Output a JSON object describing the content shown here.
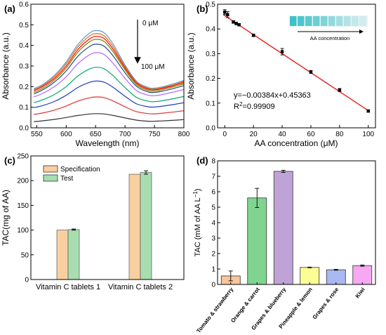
{
  "chart_data": [
    {
      "panel_label": "(a)",
      "type": "line",
      "xlabel": "Wavelength (nm)",
      "ylabel": "Absorbance (a.u.)",
      "xlim": [
        540,
        800
      ],
      "ylim": [
        0.0,
        0.6
      ],
      "xticks": [
        "550",
        "600",
        "650",
        "700",
        "750",
        "800"
      ],
      "yticks": [
        "0.0",
        "0.1",
        "0.2",
        "0.3",
        "0.4",
        "0.5",
        "0.6"
      ],
      "annotation_top": "0 μM",
      "annotation_bottom": "100 μM",
      "x": [
        545,
        560,
        580,
        600,
        620,
        640,
        652,
        665,
        680,
        700,
        720,
        740,
        750,
        760,
        780,
        800
      ],
      "series": [
        {
          "color": "#5b9bd5",
          "values": [
            0.19,
            0.21,
            0.255,
            0.32,
            0.405,
            0.46,
            0.472,
            0.46,
            0.405,
            0.305,
            0.225,
            0.195,
            0.193,
            0.197,
            0.212,
            0.23
          ]
        },
        {
          "color": "#e46c0a",
          "values": [
            0.185,
            0.205,
            0.248,
            0.311,
            0.393,
            0.446,
            0.457,
            0.445,
            0.392,
            0.297,
            0.22,
            0.191,
            0.189,
            0.193,
            0.207,
            0.225
          ]
        },
        {
          "color": "#ff0000",
          "values": [
            0.18,
            0.2,
            0.24,
            0.3,
            0.38,
            0.432,
            0.444,
            0.432,
            0.38,
            0.29,
            0.215,
            0.187,
            0.185,
            0.189,
            0.203,
            0.22
          ]
        },
        {
          "color": "#808000",
          "values": [
            0.172,
            0.192,
            0.232,
            0.29,
            0.368,
            0.418,
            0.43,
            0.418,
            0.368,
            0.281,
            0.208,
            0.181,
            0.179,
            0.183,
            0.197,
            0.213
          ]
        },
        {
          "color": "#1f4e79",
          "values": [
            0.165,
            0.184,
            0.222,
            0.276,
            0.348,
            0.395,
            0.406,
            0.395,
            0.348,
            0.267,
            0.2,
            0.174,
            0.172,
            0.176,
            0.189,
            0.205
          ]
        },
        {
          "color": "#b266ff",
          "values": [
            0.15,
            0.167,
            0.2,
            0.248,
            0.312,
            0.355,
            0.365,
            0.355,
            0.312,
            0.24,
            0.18,
            0.158,
            0.156,
            0.16,
            0.172,
            0.186
          ]
        },
        {
          "color": "#00a86b",
          "values": [
            0.122,
            0.136,
            0.162,
            0.2,
            0.252,
            0.286,
            0.294,
            0.286,
            0.252,
            0.195,
            0.147,
            0.129,
            0.127,
            0.13,
            0.14,
            0.152
          ]
        },
        {
          "color": "#1f3fbf",
          "values": [
            0.098,
            0.108,
            0.128,
            0.158,
            0.196,
            0.221,
            0.227,
            0.221,
            0.196,
            0.153,
            0.116,
            0.102,
            0.101,
            0.104,
            0.112,
            0.122
          ]
        },
        {
          "color": "#e03030",
          "values": [
            0.065,
            0.072,
            0.086,
            0.106,
            0.13,
            0.146,
            0.15,
            0.146,
            0.13,
            0.102,
            0.078,
            0.069,
            0.068,
            0.07,
            0.076,
            0.083
          ]
        },
        {
          "color": "#333333",
          "values": [
            0.03,
            0.034,
            0.041,
            0.05,
            0.06,
            0.067,
            0.069,
            0.067,
            0.06,
            0.048,
            0.037,
            0.032,
            0.032,
            0.033,
            0.036,
            0.04
          ]
        }
      ]
    },
    {
      "panel_label": "(b)",
      "type": "scatter",
      "xlabel": "AA concentration (μM)",
      "ylabel": "Absorbance (a.u.)",
      "xlim": [
        -5,
        105
      ],
      "ylim": [
        0.0,
        0.5
      ],
      "xticks": [
        "0",
        "20",
        "40",
        "60",
        "80",
        "100"
      ],
      "yticks": [
        "0.0",
        "0.1",
        "0.2",
        "0.3",
        "0.4",
        "0.5"
      ],
      "x": [
        0,
        2,
        6,
        8,
        10,
        20,
        40,
        60,
        80,
        100
      ],
      "y": [
        0.468,
        0.458,
        0.428,
        0.422,
        0.417,
        0.374,
        0.308,
        0.226,
        0.153,
        0.068
      ],
      "error": [
        0.01,
        0.012,
        0.005,
        0.005,
        0.005,
        0.005,
        0.013,
        0.006,
        0.006,
        0.005
      ],
      "fit": {
        "slope": -0.00384,
        "intercept": 0.45363,
        "color": "#e8201a"
      },
      "equation": "y=−0.00384x+0.45363",
      "r2_prefix": "R",
      "r2_sup": "2",
      "r2_value": "=0.99909",
      "inset_caption": "AA concentration",
      "inset_strips": [
        "#3fc1c9",
        "#4dc6cd",
        "#5ccad0",
        "#6dcfd4",
        "#7fd4d8",
        "#91d9dc",
        "#a3dee1",
        "#b3e3e5",
        "#c2e8ea",
        "#d0ecee"
      ]
    },
    {
      "panel_label": "(c)",
      "type": "bar",
      "ylabel": "TAC(mg of AA)",
      "ylim": [
        0,
        250
      ],
      "yticks": [
        "0",
        "50",
        "100",
        "150",
        "200",
        "250"
      ],
      "categories": [
        "Vitamin C tablets 1",
        "Vitamin C tablets 2"
      ],
      "series": [
        {
          "name": "Specification",
          "color": "#f9cfa0",
          "values": [
            100,
            213
          ],
          "error": [
            0,
            0
          ]
        },
        {
          "name": "Test",
          "color": "#a8ddb0",
          "values": [
            101,
            216.5
          ],
          "error": [
            1.2,
            3.5
          ]
        }
      ]
    },
    {
      "panel_label": "(d)",
      "type": "bar",
      "ylabel_main": "TAC (mM of AA L",
      "ylabel_sup": "−1",
      "ylabel_end": ")",
      "ylim": [
        0,
        8
      ],
      "yticks": [
        "0",
        "1",
        "2",
        "3",
        "4",
        "5",
        "6",
        "7",
        "8"
      ],
      "categories": [
        "Tomato & strawberry",
        "Orange & carrot",
        "Grapes & blueberry",
        "Pineapple & lemon",
        "Grapes & rose",
        "Kiwi"
      ],
      "values": [
        0.55,
        5.6,
        7.32,
        1.1,
        0.95,
        1.22
      ],
      "error": [
        0.32,
        0.62,
        0.07,
        0.02,
        0.03,
        0.04
      ],
      "colors": [
        "#f9c49a",
        "#7fd48f",
        "#bfa3d6",
        "#fdfd96",
        "#a9b8f0",
        "#f6a8f2"
      ]
    }
  ]
}
